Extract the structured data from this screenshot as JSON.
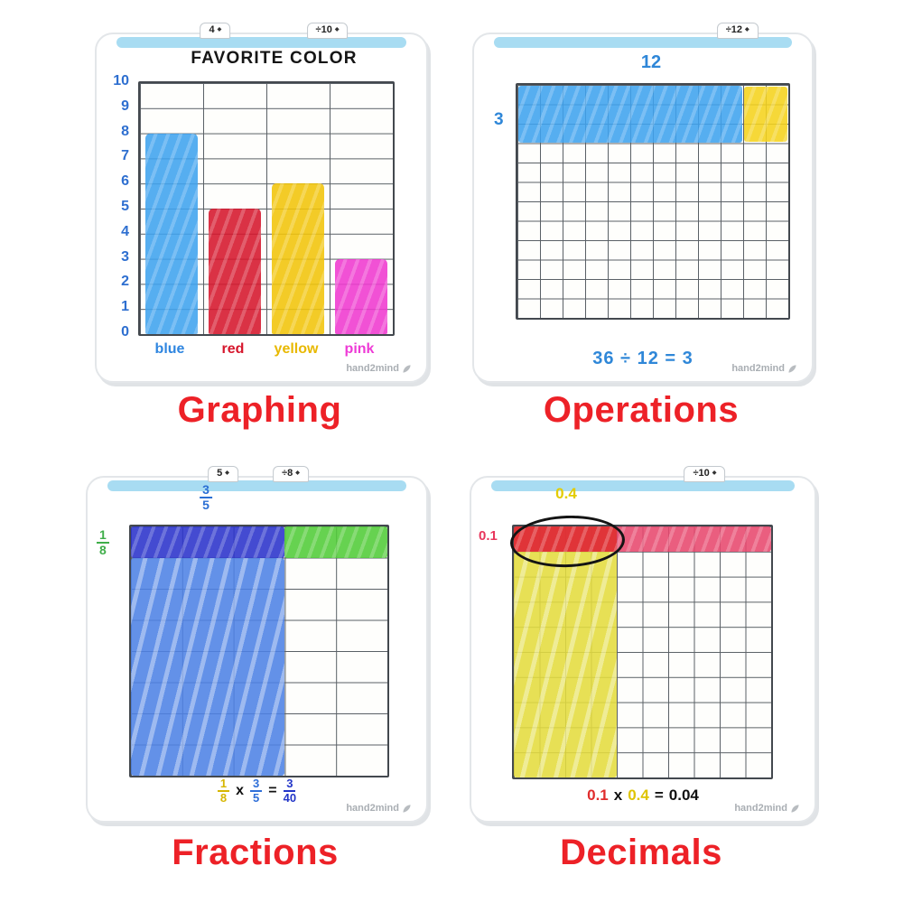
{
  "caption_color": "#ed2127",
  "logo_text": "hand2mind",
  "captions": {
    "graphing": "Graphing",
    "operations": "Operations",
    "fractions": "Fractions",
    "decimals": "Decimals"
  },
  "graphing": {
    "tabs": [
      "4",
      "÷10"
    ],
    "title": "FAVORITE COLOR",
    "y_axis": [
      "10",
      "9",
      "8",
      "7",
      "6",
      "5",
      "4",
      "3",
      "2",
      "1",
      "0"
    ],
    "x_labels": [
      {
        "label": "blue",
        "color": "#2f86e0"
      },
      {
        "label": "red",
        "color": "#d6162c"
      },
      {
        "label": "yellow",
        "color": "#e8b800"
      },
      {
        "label": "pink",
        "color": "#ee3ad6"
      }
    ],
    "grid": {
      "cols": 4,
      "rows": 10,
      "fills": [
        {
          "c1": 1,
          "c2": 1,
          "r1": 3,
          "r2": 10,
          "color": "#3fa3ef",
          "cls": "bar scribble",
          "padx": 0.08,
          "name": "bar-blue"
        },
        {
          "c1": 2,
          "c2": 2,
          "r1": 6,
          "r2": 10,
          "color": "#d6162c",
          "cls": "bar scribble",
          "padx": 0.08,
          "name": "bar-red"
        },
        {
          "c1": 3,
          "c2": 3,
          "r1": 5,
          "r2": 10,
          "color": "#f2c50a",
          "cls": "bar scribble",
          "padx": 0.08,
          "name": "bar-yellow"
        },
        {
          "c1": 4,
          "c2": 4,
          "r1": 8,
          "r2": 10,
          "color": "#f03ad0",
          "cls": "bar scribble",
          "padx": 0.08,
          "name": "bar-pink"
        }
      ]
    }
  },
  "operations": {
    "tabs": [
      "÷12"
    ],
    "ink": "#2f87d8",
    "top_label": "12",
    "side_label": "3",
    "equation": "36 ÷ 12 = 3",
    "grid": {
      "cols": 12,
      "rows": 12,
      "fills": [
        {
          "c1": 1,
          "c2": 10,
          "r1": 1,
          "r2": 3,
          "color": "#3fa3ef",
          "cls": "scribble",
          "padx": 0.03,
          "pady": 0.04,
          "name": "fill-blue-30"
        },
        {
          "c1": 11,
          "c2": 12,
          "r1": 1,
          "r2": 3,
          "color": "#f5d31e",
          "cls": "scribble",
          "padx": 0.04,
          "pady": 0.08,
          "name": "fill-yellow-6"
        }
      ]
    }
  },
  "fractions": {
    "tabs": [
      "5",
      "÷8"
    ],
    "top_fraction": {
      "num": "3",
      "den": "5",
      "color": "#2b6fd4"
    },
    "side_fraction": {
      "num": "1",
      "den": "8",
      "color": "#3fae49"
    },
    "equation": {
      "f1": {
        "num": "1",
        "den": "8",
        "color": "#d6b600"
      },
      "op": "x",
      "f2": {
        "num": "3",
        "den": "5",
        "color": "#2f6fd8"
      },
      "eq": "=",
      "f3": {
        "num": "3",
        "den": "40",
        "color": "#2336c8"
      }
    },
    "grid": {
      "cols": 5,
      "rows": 8,
      "fills": [
        {
          "c1": 1,
          "c2": 3,
          "r1": 1,
          "r2": 1,
          "color": "#2b33cc",
          "cls": "scribble",
          "name": "fill-darkblue-row"
        },
        {
          "c1": 4,
          "c2": 5,
          "r1": 1,
          "r2": 1,
          "color": "#52cc39",
          "cls": "scribble",
          "name": "fill-green-row"
        },
        {
          "c1": 1,
          "c2": 3,
          "r1": 2,
          "r2": 8,
          "color": "#4e82e6",
          "cls": "scribble-big",
          "name": "fill-blue-column"
        }
      ]
    }
  },
  "decimals": {
    "tabs": [
      "÷10"
    ],
    "top_label": {
      "text": "0.4",
      "color": "#e3cc00"
    },
    "side_label": {
      "text": "0.1",
      "color": "#e8365c"
    },
    "equation": {
      "t1": {
        "text": "0.1",
        "color": "#e02c2c"
      },
      "op": "x",
      "t2": {
        "text": "0.4",
        "color": "#dfc400"
      },
      "eq": "=",
      "result": "0.04"
    },
    "grid": {
      "cols": 10,
      "rows": 10,
      "fills": [
        {
          "c1": 1,
          "c2": 10,
          "r1": 1,
          "r2": 1,
          "color": "#e8486e",
          "cls": "scribble",
          "name": "fill-pink-row"
        },
        {
          "c1": 1,
          "c2": 4,
          "r1": 1,
          "r2": 1,
          "color": "#df2f2f",
          "cls": "scribble",
          "name": "fill-red-overlap"
        },
        {
          "c1": 1,
          "c2": 4,
          "r1": 2,
          "r2": 10,
          "color": "#e4dd3f",
          "cls": "scribble-big",
          "name": "fill-yellow-column"
        },
        {
          "c1": 1,
          "c2": 4,
          "r1": 1,
          "r2": 1,
          "color": "transparent",
          "cls": "circle-outline",
          "padx": -0.13,
          "pady": -0.42,
          "name": "overlap-circle"
        }
      ]
    }
  },
  "chart_data": [
    {
      "type": "bar",
      "title": "FAVORITE COLOR",
      "categories": [
        "blue",
        "red",
        "yellow",
        "pink"
      ],
      "values": [
        8,
        5,
        6,
        3
      ],
      "colors": [
        "#3fa3ef",
        "#d6162c",
        "#f2c50a",
        "#f03ad0"
      ],
      "xlabel": "",
      "ylabel": "",
      "ylim": [
        0,
        10
      ],
      "yticks": [
        0,
        1,
        2,
        3,
        4,
        5,
        6,
        7,
        8,
        9,
        10
      ],
      "grid": true,
      "legend": false
    },
    {
      "type": "heatmap",
      "title": "36 ÷ 12 = 3",
      "grid": {
        "cols": 12,
        "rows": 12
      },
      "col_label": "12",
      "row_label": "3",
      "filled_regions": [
        {
          "color": "blue",
          "cols": "1-10",
          "rows": "1-3",
          "cells": 30
        },
        {
          "color": "yellow",
          "cols": "11-12",
          "rows": "1-3",
          "cells": 6
        }
      ],
      "total_filled": 36
    },
    {
      "type": "heatmap",
      "title": "1/8 x 3/5 = 3/40",
      "grid": {
        "cols": 5,
        "rows": 8
      },
      "col_label": "3/5",
      "row_label": "1/8",
      "filled_regions": [
        {
          "color": "dark-blue",
          "cols": "1-3",
          "rows": "1-1"
        },
        {
          "color": "green",
          "cols": "4-5",
          "rows": "1-1"
        },
        {
          "color": "blue",
          "cols": "1-3",
          "rows": "2-8"
        }
      ]
    },
    {
      "type": "heatmap",
      "title": "0.1 x 0.4 = 0.04",
      "grid": {
        "cols": 10,
        "rows": 10
      },
      "col_label": "0.4",
      "row_label": "0.1",
      "filled_regions": [
        {
          "color": "pink",
          "cols": "1-10",
          "rows": "1-1"
        },
        {
          "color": "red-circled",
          "cols": "1-4",
          "rows": "1-1"
        },
        {
          "color": "yellow",
          "cols": "1-4",
          "rows": "2-10"
        }
      ]
    }
  ]
}
